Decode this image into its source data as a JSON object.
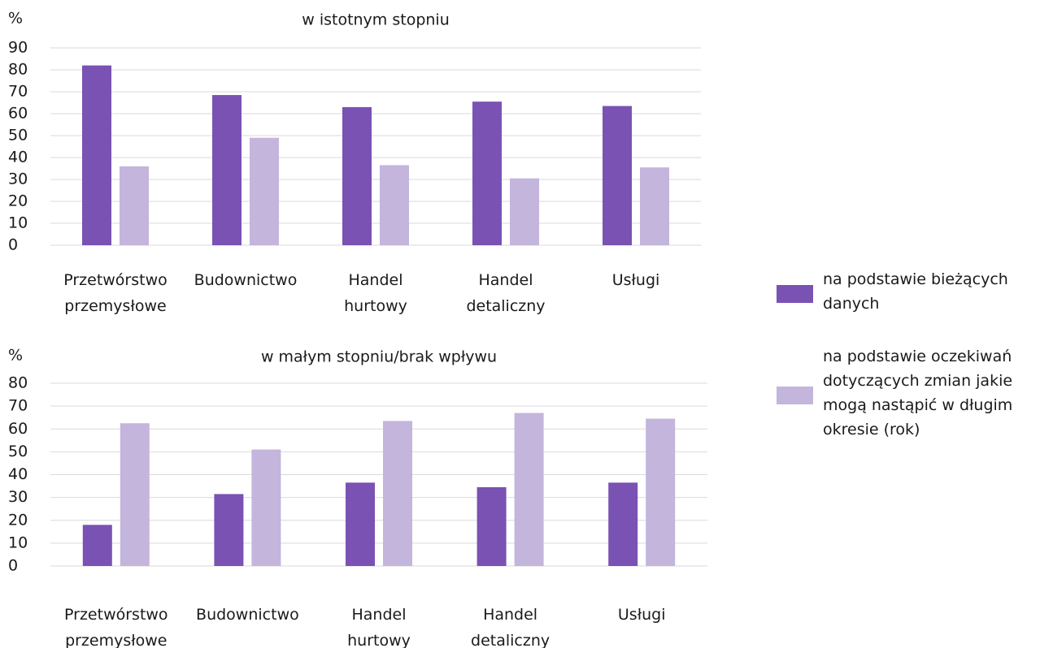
{
  "chart_data": [
    {
      "type": "bar",
      "title": "w istotnym stopniu",
      "y_label": "%",
      "categories": [
        "Przetwórstwo przemysłowe",
        "Budownictwo",
        "Handel hurtowy",
        "Handel detaliczny",
        "Usługi"
      ],
      "series": [
        {
          "name": "na podstawie bieżących danych",
          "color": "#7952b3",
          "values": [
            82,
            68.5,
            63,
            65.5,
            63.5
          ]
        },
        {
          "name": "na podstawie oczekiwań dotyczących zmian jakie mogą nastąpić w długim okresie (rok)",
          "color": "#c3b5dc",
          "values": [
            36,
            49,
            36.5,
            30.5,
            35.5
          ]
        }
      ],
      "ylim": [
        0,
        90
      ],
      "yticks": [
        0,
        10,
        20,
        30,
        40,
        50,
        60,
        70,
        80,
        90
      ],
      "grid": true
    },
    {
      "type": "bar",
      "title": "w małym stopniu/brak wpływu",
      "y_label": "%",
      "categories": [
        "Przetwórstwo przemysłowe",
        "Budownictwo",
        "Handel hurtowy",
        "Handel detaliczny",
        "Usługi"
      ],
      "series": [
        {
          "color": "#7952b3",
          "values": [
            18,
            31.5,
            36.5,
            34.5,
            36.5
          ]
        },
        {
          "color": "#c3b5dc",
          "values": [
            62.5,
            51,
            63.5,
            67,
            64.5
          ]
        }
      ],
      "ylim": [
        0,
        80
      ],
      "yticks": [
        0,
        10,
        20,
        30,
        40,
        50,
        60,
        70,
        80
      ],
      "grid": true
    }
  ]
}
